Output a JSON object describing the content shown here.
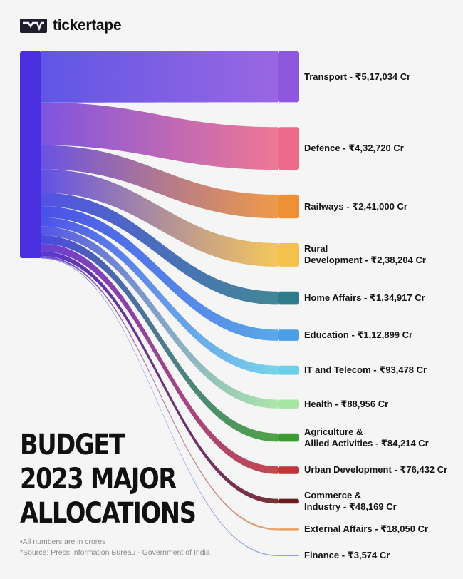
{
  "brand": {
    "name": "tickertape"
  },
  "headline": [
    "BUDGET",
    "2023 MAJOR",
    "ALLOCATIONS"
  ],
  "notes": [
    "•All numbers are in crores",
    "*Source: Press Information Bureau - Government of India"
  ],
  "colors": {
    "source": "#4a2fe0",
    "background": "#f5f5f5"
  },
  "chart_data": {
    "type": "sankey",
    "unit": "Cr",
    "nodes": [
      {
        "name": "Transport",
        "value": 517034,
        "label": [
          "Transport - ₹5,17,034 Cr"
        ],
        "color": "#8f57e0",
        "flowStart": "#5f56e6"
      },
      {
        "name": "Defence",
        "value": 432720,
        "label": [
          "Defence - ₹4,32,720 Cr"
        ],
        "color": "#ee6a8a",
        "flowStart": "#7d54e0"
      },
      {
        "name": "Railways",
        "value": 241000,
        "label": [
          "Railways - ₹2,41,000 Cr"
        ],
        "color": "#ef9035",
        "flowStart": "#6a52e2"
      },
      {
        "name": "Rural Development",
        "value": 238204,
        "label": [
          "Rural",
          "Development - ₹2,38,204 Cr"
        ],
        "color": "#f4c24a",
        "flowStart": "#6250e6"
      },
      {
        "name": "Home Affairs",
        "value": 134917,
        "label": [
          "Home Affairs - ₹1,34,917 Cr"
        ],
        "color": "#2e7b8c",
        "flowStart": "#5452e4"
      },
      {
        "name": "Education",
        "value": 112899,
        "label": [
          "Education - ₹1,12,899 Cr"
        ],
        "color": "#4aa0e6",
        "flowStart": "#4a4fe6"
      },
      {
        "name": "IT and Telecom",
        "value": 93478,
        "label": [
          "IT and Telecom - ₹93,478 Cr"
        ],
        "color": "#6ad0e8",
        "flowStart": "#4c52e8"
      },
      {
        "name": "Health",
        "value": 88956,
        "label": [
          "Health - ₹88,956 Cr"
        ],
        "color": "#a5e6a2",
        "flowStart": "#5456e6"
      },
      {
        "name": "Agriculture & Allied Activities",
        "value": 84214,
        "label": [
          "Agriculture &",
          "Allied Activities - ₹84,214 Cr"
        ],
        "color": "#3b9c2f",
        "flowStart": "#4a4ae0"
      },
      {
        "name": "Urban Development",
        "value": 76432,
        "label": [
          "Urban Development - ₹76,432 Cr"
        ],
        "color": "#c0343a",
        "flowStart": "#6a40d8"
      },
      {
        "name": "Commerce & Industry",
        "value": 48169,
        "label": [
          "Commerce &",
          "Industry - ₹48,169 Cr"
        ],
        "color": "#6b1a1e",
        "flowStart": "#5a38cf"
      },
      {
        "name": "External Affairs",
        "value": 18050,
        "label": [
          "External Affairs - ₹18,050 Cr"
        ],
        "color": "#e8a060",
        "flowStart": "#6a44d6"
      },
      {
        "name": "Finance",
        "value": 3574,
        "label": [
          "Finance - ₹3,574 Cr"
        ],
        "color": "#8aa0e8",
        "flowStart": "#6a6ae6"
      }
    ]
  }
}
